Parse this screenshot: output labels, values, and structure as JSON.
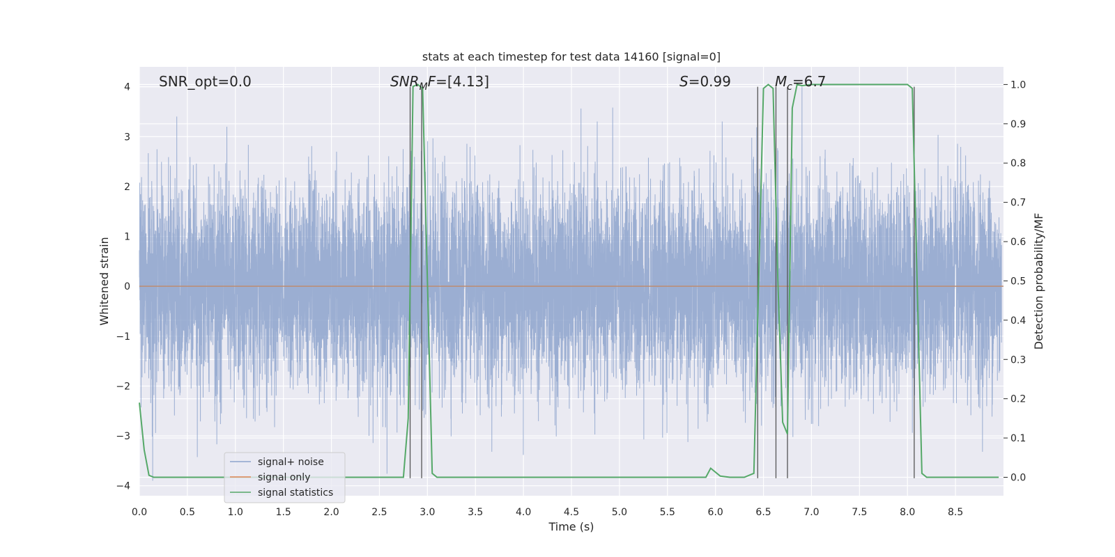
{
  "chart_data": {
    "type": "line",
    "title": "stats at each timestep for test data 14160 [signal=0]",
    "xlabel": "Time (s)",
    "ylabel": "Whitened strain",
    "y2label": "Detection probability/MF",
    "xlim": [
      0.0,
      9.0
    ],
    "ylim": [
      -4.2,
      4.4
    ],
    "y2lim": [
      -0.047,
      1.045
    ],
    "x_ticks": [
      0.0,
      0.5,
      1.0,
      1.5,
      2.0,
      2.5,
      3.0,
      3.5,
      4.0,
      4.5,
      5.0,
      5.5,
      6.0,
      6.5,
      7.0,
      7.5,
      8.0,
      8.5
    ],
    "x_tick_labels": [
      "0.0",
      "0.5",
      "1.0",
      "1.5",
      "2.0",
      "2.5",
      "3.0",
      "3.5",
      "4.0",
      "4.5",
      "5.0",
      "5.5",
      "6.0",
      "6.5",
      "7.0",
      "7.5",
      "8.0",
      "8.5"
    ],
    "y_ticks": [
      -4,
      -3,
      -2,
      -1,
      0,
      1,
      2,
      3,
      4
    ],
    "y_tick_labels": [
      "−4",
      "−3",
      "−2",
      "−1",
      "0",
      "1",
      "2",
      "3",
      "4"
    ],
    "y2_ticks": [
      0.0,
      0.1,
      0.2,
      0.3,
      0.4,
      0.5,
      0.6,
      0.7,
      0.8,
      0.9,
      1.0
    ],
    "y2_tick_labels": [
      "0.0",
      "0.1",
      "0.2",
      "0.3",
      "0.4",
      "0.5",
      "0.6",
      "0.7",
      "0.8",
      "0.9",
      "1.0"
    ],
    "grid": true,
    "legend_position": "lower-left",
    "annotations": [
      {
        "plain": "SNR_opt=0.0"
      },
      {
        "italic": "SNR",
        "sub": "M",
        "italic2": "F",
        "rest": "=[4.13]"
      },
      {
        "italic": "S",
        "rest": "=0.99"
      },
      {
        "italic": "M",
        "sub": "c",
        "rest": "=6.7"
      }
    ],
    "series": [
      {
        "name": "signal+ noise",
        "axis": "left",
        "color": "#8da3cc",
        "description": "white noise strain, std approx 1, peaks up to +4 and down to -3.9",
        "sample_rate_hz": 1024,
        "approx_std": 1.0
      },
      {
        "name": "signal only",
        "axis": "left",
        "color": "#dd8452",
        "x": [
          0.0,
          9.0
        ],
        "y": [
          0.0,
          0.0
        ]
      },
      {
        "name": "signal statistics",
        "axis": "right",
        "color": "#55a868",
        "x": [
          0.0,
          0.05,
          0.1,
          0.15,
          0.5,
          1.0,
          1.5,
          2.0,
          2.5,
          2.75,
          2.8,
          2.85,
          2.9,
          2.95,
          3.0,
          3.05,
          3.1,
          3.2,
          3.5,
          4.0,
          4.5,
          5.0,
          5.5,
          5.9,
          5.95,
          6.05,
          6.15,
          6.3,
          6.4,
          6.45,
          6.5,
          6.55,
          6.6,
          6.65,
          6.7,
          6.75,
          6.8,
          6.85,
          6.9,
          7.0,
          7.5,
          8.0,
          8.05,
          8.1,
          8.15,
          8.2,
          8.5,
          8.95
        ],
        "y": [
          0.19,
          0.07,
          0.005,
          0.0,
          0.0,
          0.0,
          0.0,
          0.0,
          0.0,
          0.0,
          0.15,
          0.995,
          1.0,
          0.99,
          0.5,
          0.01,
          0.0,
          0.0,
          0.0,
          0.0,
          0.0,
          0.0,
          0.0,
          0.0,
          0.023,
          0.003,
          0.0,
          0.0,
          0.01,
          0.5,
          0.99,
          1.0,
          0.99,
          0.5,
          0.14,
          0.11,
          0.94,
          1.0,
          0.997,
          1.0,
          1.0,
          1.0,
          0.99,
          0.5,
          0.01,
          0.0,
          0.0,
          0.0
        ]
      }
    ],
    "vertical_lines": [
      2.82,
      2.94,
      6.44,
      6.63,
      6.75,
      8.07
    ]
  }
}
